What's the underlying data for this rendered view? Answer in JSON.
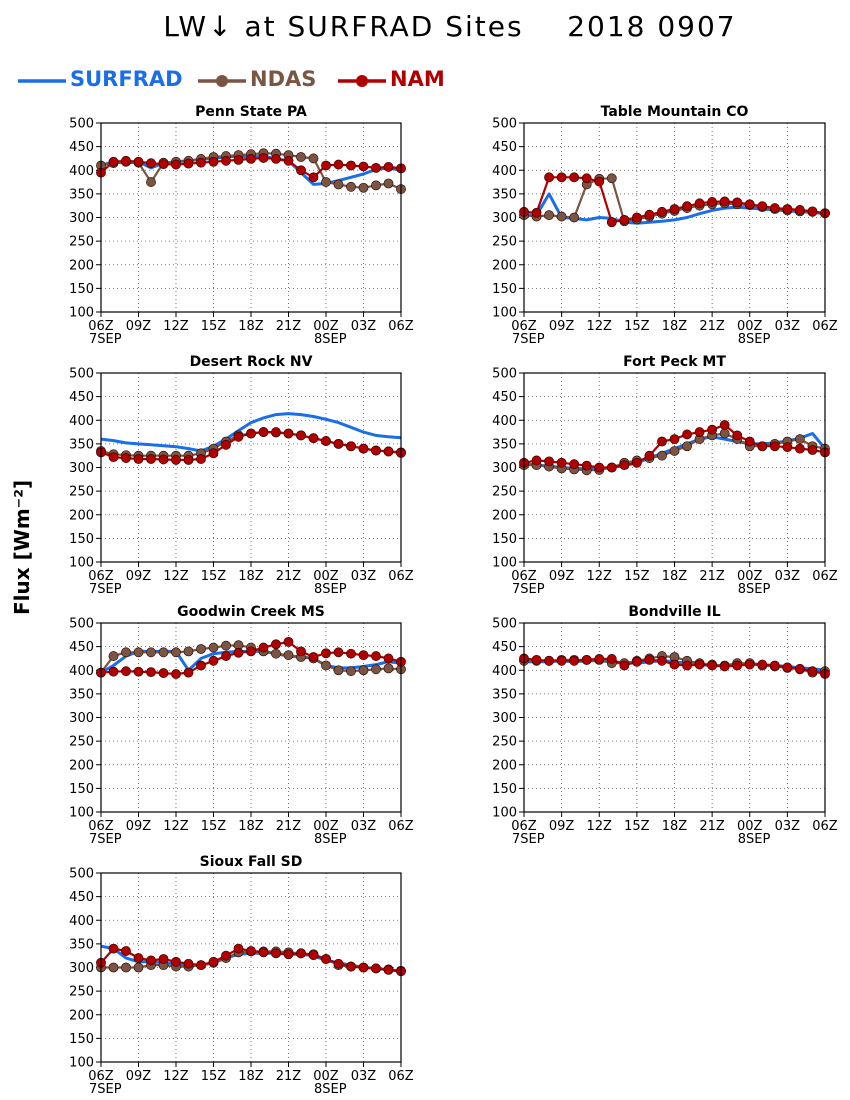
{
  "header": {
    "title": "LW↓ at SURFRAD Sites    2018 0907"
  },
  "legend": [
    {
      "name": "SURFRAD",
      "color": "#1a6fe8",
      "marker": false
    },
    {
      "name": "NDAS",
      "color": "#7b5543",
      "marker": true
    },
    {
      "name": "NAM",
      "color": "#b00000",
      "marker": true
    }
  ],
  "ylabel": "Flux [Wm⁻²]",
  "axis": {
    "ylim": [
      100,
      500
    ],
    "yticks": [
      100,
      150,
      200,
      250,
      300,
      350,
      400,
      450,
      500
    ],
    "xlim": [
      0,
      24
    ],
    "xticks": [
      "06Z",
      "09Z",
      "12Z",
      "15Z",
      "18Z",
      "21Z",
      "00Z",
      "03Z",
      "06Z"
    ],
    "date_labels": [
      {
        "x": 0,
        "text": "7SEP"
      },
      {
        "x": 18,
        "text": "8SEP"
      }
    ],
    "grid": "dotted"
  },
  "chart_data": [
    {
      "type": "line",
      "title": "Penn State PA",
      "x": [
        0,
        1,
        2,
        3,
        4,
        5,
        6,
        7,
        8,
        9,
        10,
        11,
        12,
        13,
        14,
        15,
        16,
        17,
        18,
        19,
        20,
        21,
        22,
        23,
        24
      ],
      "series": [
        {
          "name": "SURFRAD",
          "values": [
            410,
            418,
            415,
            418,
            405,
            415,
            418,
            420,
            423,
            425,
            428,
            430,
            428,
            430,
            424,
            420,
            395,
            370,
            372,
            378,
            385,
            392,
            402,
            405,
            400
          ]
        },
        {
          "name": "NDAS",
          "values": [
            410,
            415,
            418,
            416,
            375,
            416,
            418,
            420,
            424,
            428,
            430,
            432,
            434,
            436,
            435,
            432,
            428,
            425,
            375,
            370,
            365,
            363,
            368,
            372,
            360
          ]
        },
        {
          "name": "NAM",
          "values": [
            395,
            418,
            420,
            418,
            415,
            413,
            412,
            414,
            416,
            418,
            420,
            422,
            424,
            426,
            424,
            420,
            400,
            385,
            410,
            412,
            410,
            408,
            405,
            407,
            404
          ]
        }
      ]
    },
    {
      "type": "line",
      "title": "Table Mountain CO",
      "x": [
        0,
        1,
        2,
        3,
        4,
        5,
        6,
        7,
        8,
        9,
        10,
        11,
        12,
        13,
        14,
        15,
        16,
        17,
        18,
        19,
        20,
        21,
        22,
        23,
        24
      ],
      "series": [
        {
          "name": "SURFRAD",
          "values": [
            305,
            305,
            350,
            300,
            298,
            295,
            300,
            298,
            290,
            288,
            290,
            292,
            295,
            300,
            308,
            315,
            320,
            322,
            320,
            318,
            316,
            314,
            312,
            311,
            308
          ]
        },
        {
          "name": "NDAS",
          "values": [
            305,
            302,
            305,
            302,
            300,
            370,
            382,
            383,
            292,
            296,
            302,
            308,
            314,
            320,
            325,
            328,
            330,
            328,
            326,
            322,
            318,
            315,
            313,
            312,
            309
          ]
        },
        {
          "name": "NAM",
          "values": [
            312,
            310,
            385,
            385,
            385,
            383,
            376,
            290,
            295,
            300,
            306,
            312,
            318,
            324,
            330,
            333,
            334,
            332,
            328,
            324,
            320,
            318,
            316,
            313,
            309
          ]
        }
      ]
    },
    {
      "type": "line",
      "title": "Desert Rock NV",
      "x": [
        0,
        1,
        2,
        3,
        4,
        5,
        6,
        7,
        8,
        9,
        10,
        11,
        12,
        13,
        14,
        15,
        16,
        17,
        18,
        19,
        20,
        21,
        22,
        23,
        24
      ],
      "series": [
        {
          "name": "SURFRAD",
          "values": [
            360,
            357,
            352,
            350,
            348,
            346,
            344,
            340,
            335,
            345,
            360,
            378,
            395,
            405,
            412,
            414,
            412,
            408,
            402,
            395,
            385,
            375,
            368,
            365,
            363
          ]
        },
        {
          "name": "NDAS",
          "values": [
            335,
            328,
            326,
            325,
            325,
            325,
            325,
            325,
            330,
            340,
            355,
            368,
            372,
            375,
            374,
            372,
            368,
            362,
            356,
            350,
            345,
            340,
            336,
            334,
            332
          ]
        },
        {
          "name": "NAM",
          "values": [
            332,
            322,
            320,
            318,
            318,
            317,
            316,
            316,
            318,
            330,
            348,
            365,
            372,
            375,
            375,
            372,
            368,
            362,
            356,
            350,
            345,
            340,
            336,
            334,
            331
          ]
        }
      ]
    },
    {
      "type": "line",
      "title": "Fort Peck MT",
      "x": [
        0,
        1,
        2,
        3,
        4,
        5,
        6,
        7,
        8,
        9,
        10,
        11,
        12,
        13,
        14,
        15,
        16,
        17,
        18,
        19,
        20,
        21,
        22,
        23,
        24
      ],
      "series": [
        {
          "name": "SURFRAD",
          "values": [
            308,
            305,
            303,
            300,
            298,
            297,
            298,
            300,
            304,
            310,
            320,
            330,
            340,
            350,
            360,
            365,
            360,
            355,
            350,
            350,
            352,
            356,
            362,
            372,
            340
          ]
        },
        {
          "name": "NDAS",
          "values": [
            305,
            305,
            302,
            298,
            296,
            294,
            295,
            300,
            310,
            315,
            320,
            325,
            335,
            345,
            360,
            368,
            372,
            360,
            345,
            345,
            350,
            355,
            360,
            345,
            340
          ]
        },
        {
          "name": "NAM",
          "values": [
            310,
            315,
            313,
            310,
            307,
            304,
            300,
            300,
            305,
            310,
            325,
            355,
            360,
            370,
            375,
            380,
            390,
            368,
            355,
            345,
            345,
            343,
            340,
            337,
            332
          ]
        }
      ]
    },
    {
      "type": "line",
      "title": "Goodwin Creek MS",
      "x": [
        0,
        1,
        2,
        3,
        4,
        5,
        6,
        7,
        8,
        9,
        10,
        11,
        12,
        13,
        14,
        15,
        16,
        17,
        18,
        19,
        20,
        21,
        22,
        23,
        24
      ],
      "series": [
        {
          "name": "SURFRAD",
          "values": [
            395,
            410,
            430,
            440,
            440,
            440,
            440,
            400,
            425,
            435,
            438,
            440,
            440,
            440,
            435,
            430,
            428,
            425,
            410,
            405,
            405,
            408,
            412,
            418,
            415
          ]
        },
        {
          "name": "NDAS",
          "values": [
            395,
            430,
            438,
            438,
            438,
            438,
            438,
            440,
            445,
            448,
            452,
            453,
            448,
            440,
            435,
            432,
            428,
            425,
            410,
            400,
            398,
            400,
            402,
            404,
            402
          ]
        },
        {
          "name": "NAM",
          "values": [
            395,
            397,
            398,
            397,
            396,
            394,
            392,
            395,
            410,
            420,
            430,
            437,
            440,
            448,
            455,
            460,
            440,
            428,
            436,
            438,
            435,
            432,
            430,
            425,
            418
          ]
        }
      ]
    },
    {
      "type": "line",
      "title": "Bondville IL",
      "x": [
        0,
        1,
        2,
        3,
        4,
        5,
        6,
        7,
        8,
        9,
        10,
        11,
        12,
        13,
        14,
        15,
        16,
        17,
        18,
        19,
        20,
        21,
        22,
        23,
        24
      ],
      "series": [
        {
          "name": "SURFRAD",
          "values": [
            418,
            418,
            418,
            420,
            418,
            420,
            420,
            418,
            416,
            415,
            418,
            420,
            418,
            415,
            412,
            410,
            410,
            412,
            414,
            412,
            410,
            408,
            405,
            403,
            400
          ]
        },
        {
          "name": "NDAS",
          "values": [
            420,
            420,
            420,
            422,
            422,
            422,
            422,
            415,
            415,
            420,
            425,
            430,
            428,
            420,
            415,
            412,
            410,
            415,
            415,
            410,
            408,
            405,
            402,
            395,
            398
          ]
        },
        {
          "name": "NAM",
          "values": [
            425,
            422,
            420,
            420,
            420,
            422,
            424,
            424,
            410,
            418,
            422,
            420,
            412,
            410,
            412,
            410,
            408,
            410,
            412,
            412,
            410,
            406,
            403,
            398,
            392
          ]
        }
      ]
    },
    {
      "type": "line",
      "title": "Sioux Fall SD",
      "x": [
        0,
        1,
        2,
        3,
        4,
        5,
        6,
        7,
        8,
        9,
        10,
        11,
        12,
        13,
        14,
        15,
        16,
        17,
        18,
        19,
        20,
        21,
        22,
        23,
        24
      ],
      "series": [
        {
          "name": "SURFRAD",
          "values": [
            345,
            340,
            320,
            312,
            312,
            310,
            308,
            305,
            305,
            310,
            320,
            328,
            330,
            330,
            330,
            328,
            328,
            325,
            315,
            310,
            305,
            300,
            298,
            295,
            292
          ]
        },
        {
          "name": "NDAS",
          "values": [
            300,
            300,
            300,
            300,
            305,
            305,
            302,
            302,
            305,
            310,
            320,
            332,
            334,
            334,
            334,
            332,
            330,
            328,
            318,
            305,
            302,
            300,
            298,
            296,
            293
          ]
        },
        {
          "name": "NAM",
          "values": [
            310,
            340,
            335,
            320,
            315,
            318,
            312,
            308,
            305,
            312,
            325,
            340,
            335,
            332,
            330,
            328,
            330,
            326,
            318,
            308,
            302,
            300,
            298,
            295,
            292
          ]
        }
      ]
    }
  ]
}
